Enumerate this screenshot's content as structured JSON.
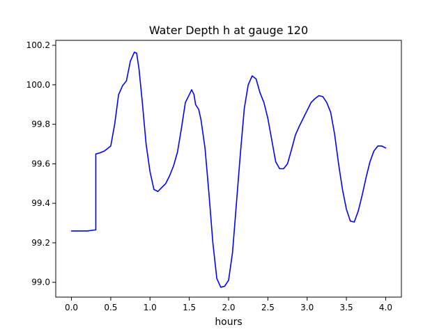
{
  "chart_data": {
    "type": "line",
    "title": "Water Depth h at gauge 120",
    "xlabel": "hours",
    "ylabel": "",
    "xlim": [
      -0.2,
      4.2
    ],
    "ylim": [
      98.925,
      100.225
    ],
    "xticks": [
      0.0,
      0.5,
      1.0,
      1.5,
      2.0,
      2.5,
      3.0,
      3.5,
      4.0
    ],
    "xtick_labels": [
      "0.0",
      "0.5",
      "1.0",
      "1.5",
      "2.0",
      "2.5",
      "3.0",
      "3.5",
      "4.0"
    ],
    "yticks": [
      99.0,
      99.2,
      99.4,
      99.6,
      99.8,
      100.0,
      100.2
    ],
    "ytick_labels": [
      "99.0",
      "99.2",
      "99.4",
      "99.6",
      "99.8",
      "100.0",
      "100.2"
    ],
    "grid": false,
    "series": [
      {
        "color": "#0000ff",
        "points": [
          [
            0.0,
            99.26
          ],
          [
            0.1,
            99.26
          ],
          [
            0.2,
            99.26
          ],
          [
            0.3,
            99.265
          ],
          [
            0.31,
            99.265
          ],
          [
            0.31,
            99.65
          ],
          [
            0.36,
            99.655
          ],
          [
            0.42,
            99.665
          ],
          [
            0.5,
            99.69
          ],
          [
            0.55,
            99.8
          ],
          [
            0.6,
            99.95
          ],
          [
            0.65,
            99.995
          ],
          [
            0.7,
            100.02
          ],
          [
            0.75,
            100.12
          ],
          [
            0.8,
            100.165
          ],
          [
            0.83,
            100.16
          ],
          [
            0.86,
            100.08
          ],
          [
            0.9,
            99.92
          ],
          [
            0.95,
            99.7
          ],
          [
            1.0,
            99.56
          ],
          [
            1.05,
            99.47
          ],
          [
            1.1,
            99.46
          ],
          [
            1.15,
            99.48
          ],
          [
            1.2,
            99.5
          ],
          [
            1.25,
            99.54
          ],
          [
            1.3,
            99.59
          ],
          [
            1.35,
            99.66
          ],
          [
            1.4,
            99.78
          ],
          [
            1.45,
            99.91
          ],
          [
            1.5,
            99.95
          ],
          [
            1.53,
            99.975
          ],
          [
            1.56,
            99.95
          ],
          [
            1.58,
            99.9
          ],
          [
            1.62,
            99.875
          ],
          [
            1.65,
            99.82
          ],
          [
            1.7,
            99.68
          ],
          [
            1.75,
            99.45
          ],
          [
            1.8,
            99.2
          ],
          [
            1.85,
            99.02
          ],
          [
            1.9,
            98.975
          ],
          [
            1.95,
            98.98
          ],
          [
            2.0,
            99.01
          ],
          [
            2.05,
            99.15
          ],
          [
            2.1,
            99.4
          ],
          [
            2.15,
            99.65
          ],
          [
            2.2,
            99.88
          ],
          [
            2.25,
            100.0
          ],
          [
            2.3,
            100.045
          ],
          [
            2.35,
            100.03
          ],
          [
            2.4,
            99.96
          ],
          [
            2.45,
            99.91
          ],
          [
            2.5,
            99.83
          ],
          [
            2.55,
            99.72
          ],
          [
            2.6,
            99.61
          ],
          [
            2.65,
            99.575
          ],
          [
            2.7,
            99.575
          ],
          [
            2.75,
            99.6
          ],
          [
            2.8,
            99.67
          ],
          [
            2.85,
            99.745
          ],
          [
            2.9,
            99.79
          ],
          [
            2.95,
            99.83
          ],
          [
            3.0,
            99.87
          ],
          [
            3.05,
            99.91
          ],
          [
            3.1,
            99.93
          ],
          [
            3.15,
            99.945
          ],
          [
            3.2,
            99.94
          ],
          [
            3.25,
            99.91
          ],
          [
            3.3,
            99.86
          ],
          [
            3.35,
            99.75
          ],
          [
            3.4,
            99.6
          ],
          [
            3.45,
            99.47
          ],
          [
            3.5,
            99.37
          ],
          [
            3.55,
            99.31
          ],
          [
            3.6,
            99.305
          ],
          [
            3.65,
            99.36
          ],
          [
            3.7,
            99.44
          ],
          [
            3.75,
            99.53
          ],
          [
            3.8,
            99.61
          ],
          [
            3.85,
            99.665
          ],
          [
            3.9,
            99.69
          ],
          [
            3.95,
            99.69
          ],
          [
            4.0,
            99.68
          ]
        ]
      }
    ]
  }
}
